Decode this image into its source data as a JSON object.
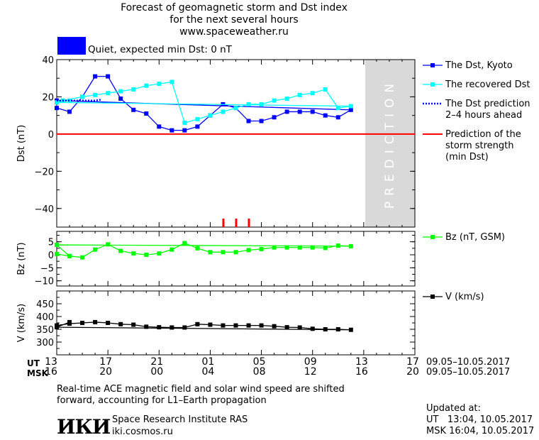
{
  "header": {
    "title_lines": [
      "Forecast of geomagnetic storm and Dst index",
      "for the next several hours",
      "www.spaceweather.ru"
    ]
  },
  "status": {
    "text": "Quiet, expected min Dst: 0 nT",
    "color": "#0000ff"
  },
  "colors": {
    "dst_kyoto": "#0000ff",
    "dst_recovered": "#00ffff",
    "dst_prediction": "#0000ff",
    "min_dst": "#ff0000",
    "bz": "#00ff00",
    "v": "#000000",
    "prediction_zone": "#d9d9d9"
  },
  "chart_data": {
    "type": "line",
    "x_ticks": {
      "ut_label": "UT",
      "msk_label": "MSK",
      "ut": [
        "13",
        "17",
        "21",
        "01",
        "05",
        "09",
        "13",
        "17"
      ],
      "msk": [
        "16",
        "20",
        "00",
        "04",
        "08",
        "12",
        "16",
        "20"
      ],
      "ut_range": "09.05–10.05.2017",
      "msk_range": "09.05–10.05.2017"
    },
    "prediction_zone_label": "PREDICTION",
    "panels": [
      {
        "ylabel": "Dst (nT)",
        "ylim": [
          -50,
          40
        ],
        "yticks": [
          40,
          20,
          0,
          -20,
          -40
        ],
        "series": [
          {
            "name": "The Dst, Kyoto",
            "style": "line-square",
            "x": [
              13,
              14,
              15,
              16,
              17,
              18,
              19,
              20,
              21,
              22,
              23,
              0,
              1,
              2,
              3,
              4,
              5,
              6,
              7,
              8,
              9,
              10,
              11,
              12,
              13
            ],
            "values": [
              14,
              12,
              20,
              31,
              31,
              19,
              13,
              11,
              4,
              2,
              2,
              4,
              10,
              16,
              14,
              7,
              7,
              9,
              12,
              12,
              12,
              10,
              9,
              13,
              18
            ]
          },
          {
            "name": "The recovered Dst",
            "style": "line-square",
            "x": [
              13.5,
              15,
              16,
              17,
              18,
              19,
              20,
              21,
              22,
              23,
              0,
              1,
              2,
              3,
              4,
              5,
              6,
              7,
              8,
              9,
              10,
              11,
              12,
              13,
              14
            ],
            "values": [
              18,
              20,
              21,
              22,
              23,
              24,
              26,
              27,
              28,
              6,
              8,
              10,
              12,
              14,
              16,
              16,
              18,
              19,
              21,
              22,
              24,
              14,
              15,
              17,
              18
            ]
          },
          {
            "name": "The Dst prediction",
            "style": "dotted",
            "x": [
              13,
              14,
              15,
              16,
              16.5
            ],
            "values": [
              18,
              18,
              18,
              18,
              18.5
            ]
          },
          {
            "name": "Prediction of the storm strength (min Dst)",
            "style": "hline",
            "value": 0
          }
        ],
        "legend": [
          {
            "lines": [
              "The Dst, Kyoto"
            ],
            "color": "#0000ff",
            "style": "line-square"
          },
          {
            "lines": [
              "The recovered Dst"
            ],
            "color": "#00ffff",
            "style": "line-square"
          },
          {
            "lines": [
              "The Dst prediction",
              "2–4 hours ahead"
            ],
            "color": "#0000ff",
            "style": "dotted"
          },
          {
            "lines": [
              "Prediction of the",
              "storm strength",
              "(min Dst)"
            ],
            "color": "#ff0000",
            "style": "line"
          }
        ]
      },
      {
        "ylabel": "Bz (nT)",
        "ylim": [
          -12,
          9
        ],
        "yticks": [
          5,
          0,
          -5,
          -10
        ],
        "series": [
          {
            "name": "Bz (nT, GSM)",
            "style": "line-square",
            "x": [
              13,
              14,
              15,
              16,
              17,
              18,
              19,
              20,
              21,
              22,
              23,
              0,
              1,
              2,
              3,
              4,
              5,
              6,
              7,
              8,
              9,
              10,
              11,
              12,
              13,
              14
            ],
            "values": [
              0.3,
              -0.5,
              -1,
              2,
              4,
              1.5,
              0.5,
              0,
              0.5,
              2,
              4.5,
              2.5,
              1,
              1,
              1,
              1.8,
              2.2,
              2.8,
              2.8,
              2.8,
              2.8,
              2.6,
              3.5,
              3.3,
              3.8,
              -0.5
            ]
          }
        ],
        "legend": [
          {
            "lines": [
              "Bz (nT, GSM)"
            ],
            "color": "#00ff00",
            "style": "line-square"
          }
        ]
      },
      {
        "ylabel": "V (km/s)",
        "ylim": [
          250,
          500
        ],
        "yticks": [
          450,
          400,
          350,
          300
        ],
        "series": [
          {
            "name": "V (km/s)",
            "style": "line-square",
            "x": [
              13,
              14,
              15,
              16,
              17,
              18,
              19,
              20,
              21,
              22,
              23,
              0,
              1,
              2,
              3,
              4,
              5,
              6,
              7,
              8,
              9,
              10,
              11,
              12,
              13,
              14
            ],
            "values": [
              365,
              372,
              375,
              378,
              375,
              370,
              368,
              360,
              358,
              357,
              357,
              370,
              368,
              365,
              365,
              365,
              365,
              362,
              358,
              357,
              352,
              350,
              350,
              348,
              358,
              378
            ]
          }
        ],
        "legend": [
          {
            "lines": [
              "V (km/s)"
            ],
            "color": "#000000",
            "style": "line-square"
          }
        ]
      }
    ]
  },
  "footer": {
    "note_lines": [
      "Real-time ACE magnetic field and solar wind speed are shifted",
      "forward, accounting for L1–Earth propagation"
    ],
    "logo_text": "ИКИ",
    "institute": "Space Research Institute RAS",
    "url": "iki.cosmos.ru",
    "updated_label": "Updated at:",
    "updated_ut": "UT   13:04, 10.05.2017",
    "updated_msk": "MSK 16:04, 10.05.2017"
  }
}
